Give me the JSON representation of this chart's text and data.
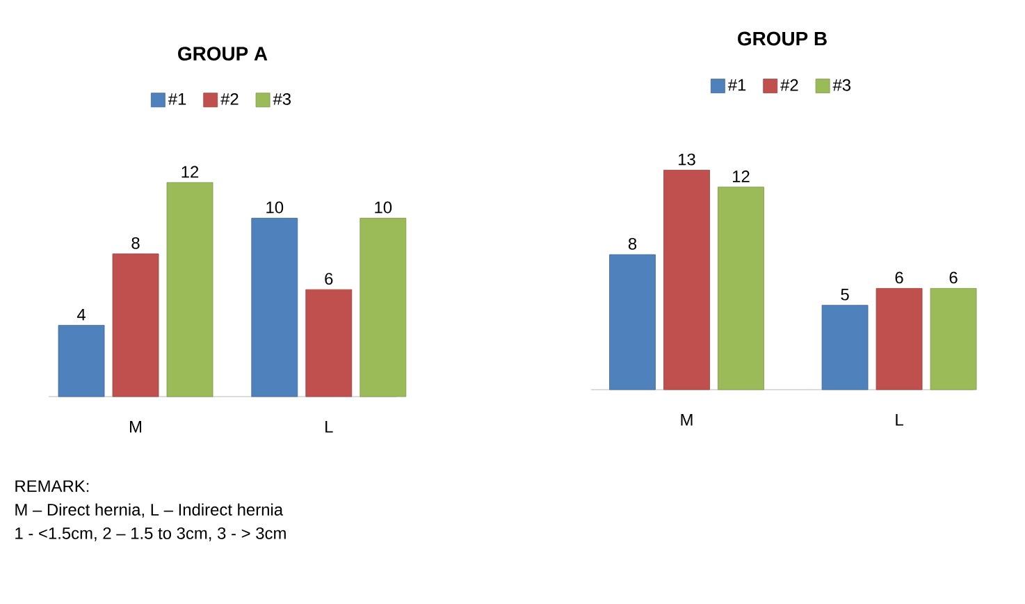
{
  "chart_data": [
    {
      "type": "bar",
      "title": "GROUP A",
      "categories": [
        "M",
        "L"
      ],
      "series": [
        {
          "name": "#1",
          "color": "#4f81bd",
          "values": [
            4,
            10
          ]
        },
        {
          "name": "#2",
          "color": "#c0504d",
          "values": [
            8,
            6
          ]
        },
        {
          "name": "#3",
          "color": "#9bbb59",
          "values": [
            12,
            10
          ]
        }
      ],
      "data_labels": true,
      "legend": "top",
      "annotations": [
        "REMARK:",
        "M – Direct hernia, L – Indirect hernia",
        "1 - <1.5cm, 2 – 1.5 to 3cm, 3 - > 3cm"
      ]
    },
    {
      "type": "bar",
      "title": "GROUP B",
      "categories": [
        "M",
        "L"
      ],
      "series": [
        {
          "name": "#1",
          "color": "#4f81bd",
          "values": [
            8,
            5
          ]
        },
        {
          "name": "#2",
          "color": "#c0504d",
          "values": [
            13,
            6
          ]
        },
        {
          "name": "#3",
          "color": "#9bbb59",
          "values": [
            12,
            6
          ]
        }
      ],
      "data_labels": true,
      "legend": "top"
    }
  ]
}
